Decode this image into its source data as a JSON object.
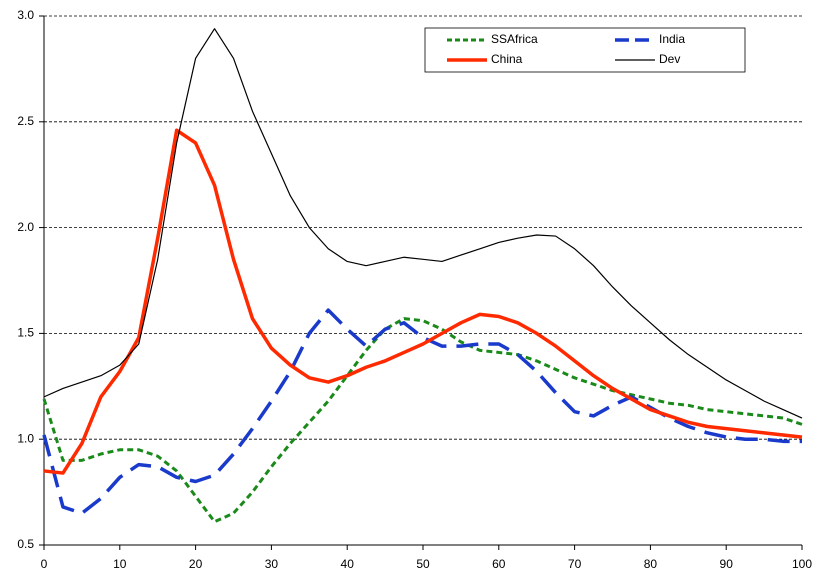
{
  "chart_data": {
    "type": "line",
    "x": [
      0,
      2.5,
      5,
      7.5,
      10,
      12.5,
      15,
      17.5,
      20,
      22.5,
      25,
      27.5,
      30,
      32.5,
      35,
      37.5,
      40,
      42.5,
      45,
      47.5,
      50,
      52.5,
      55,
      57.5,
      60,
      62.5,
      65,
      67.5,
      70,
      72.5,
      75,
      77.5,
      80,
      82.5,
      85,
      87.5,
      90,
      92.5,
      95,
      97.5,
      100
    ],
    "series": [
      {
        "name": "SSAfrica",
        "color": "#1a8a1a",
        "dash": "6,4",
        "width": 3,
        "values": [
          1.19,
          0.9,
          0.9,
          0.93,
          0.95,
          0.95,
          0.92,
          0.85,
          0.73,
          0.61,
          0.65,
          0.75,
          0.87,
          0.98,
          1.08,
          1.18,
          1.3,
          1.42,
          1.52,
          1.57,
          1.56,
          1.52,
          1.46,
          1.42,
          1.41,
          1.4,
          1.37,
          1.33,
          1.29,
          1.26,
          1.23,
          1.21,
          1.19,
          1.17,
          1.16,
          1.14,
          1.13,
          1.12,
          1.11,
          1.1,
          1.07
        ]
      },
      {
        "name": "India",
        "color": "#1a3acc",
        "dash": "22,10",
        "width": 3.5,
        "values": [
          1.02,
          0.68,
          0.65,
          0.72,
          0.82,
          0.88,
          0.87,
          0.82,
          0.8,
          0.83,
          0.93,
          1.05,
          1.18,
          1.32,
          1.5,
          1.61,
          1.52,
          1.44,
          1.52,
          1.55,
          1.48,
          1.44,
          1.44,
          1.45,
          1.45,
          1.4,
          1.32,
          1.22,
          1.13,
          1.11,
          1.16,
          1.2,
          1.15,
          1.1,
          1.06,
          1.03,
          1.01,
          1.0,
          1.0,
          0.99,
          0.99
        ]
      },
      {
        "name": "China",
        "color": "#ff2a00",
        "dash": "",
        "width": 3.5,
        "values": [
          0.85,
          0.84,
          0.98,
          1.2,
          1.32,
          1.48,
          1.95,
          2.46,
          2.4,
          2.2,
          1.85,
          1.57,
          1.43,
          1.35,
          1.29,
          1.27,
          1.3,
          1.34,
          1.37,
          1.41,
          1.45,
          1.5,
          1.55,
          1.59,
          1.58,
          1.55,
          1.5,
          1.44,
          1.37,
          1.3,
          1.24,
          1.19,
          1.14,
          1.11,
          1.08,
          1.06,
          1.05,
          1.04,
          1.03,
          1.02,
          1.01
        ]
      },
      {
        "name": "Dev",
        "color": "#000000",
        "dash": "",
        "width": 1.2,
        "values": [
          1.2,
          1.24,
          1.27,
          1.3,
          1.35,
          1.45,
          1.85,
          2.4,
          2.8,
          2.94,
          2.8,
          2.55,
          2.35,
          2.15,
          2.0,
          1.9,
          1.84,
          1.82,
          1.84,
          1.86,
          1.85,
          1.84,
          1.87,
          1.9,
          1.93,
          1.95,
          1.965,
          1.96,
          1.9,
          1.82,
          1.72,
          1.63,
          1.55,
          1.47,
          1.4,
          1.34,
          1.28,
          1.23,
          1.18,
          1.14,
          1.1
        ]
      }
    ],
    "xlim": [
      0,
      100
    ],
    "xticks": [
      0,
      10,
      20,
      30,
      40,
      50,
      60,
      70,
      80,
      90,
      100
    ],
    "ylim": [
      0.5,
      3.0
    ],
    "yticks": [
      {
        "value": 0.5,
        "label": "0.5"
      },
      {
        "value": 1.0,
        "label": "1.0"
      },
      {
        "value": 1.5,
        "label": "1.5"
      },
      {
        "value": 2.0,
        "label": "2.0"
      },
      {
        "value": 2.5,
        "label": "2.5"
      },
      {
        "value": 3.0,
        "label": "3.0"
      }
    ],
    "grid": true,
    "legend": "top-right"
  }
}
